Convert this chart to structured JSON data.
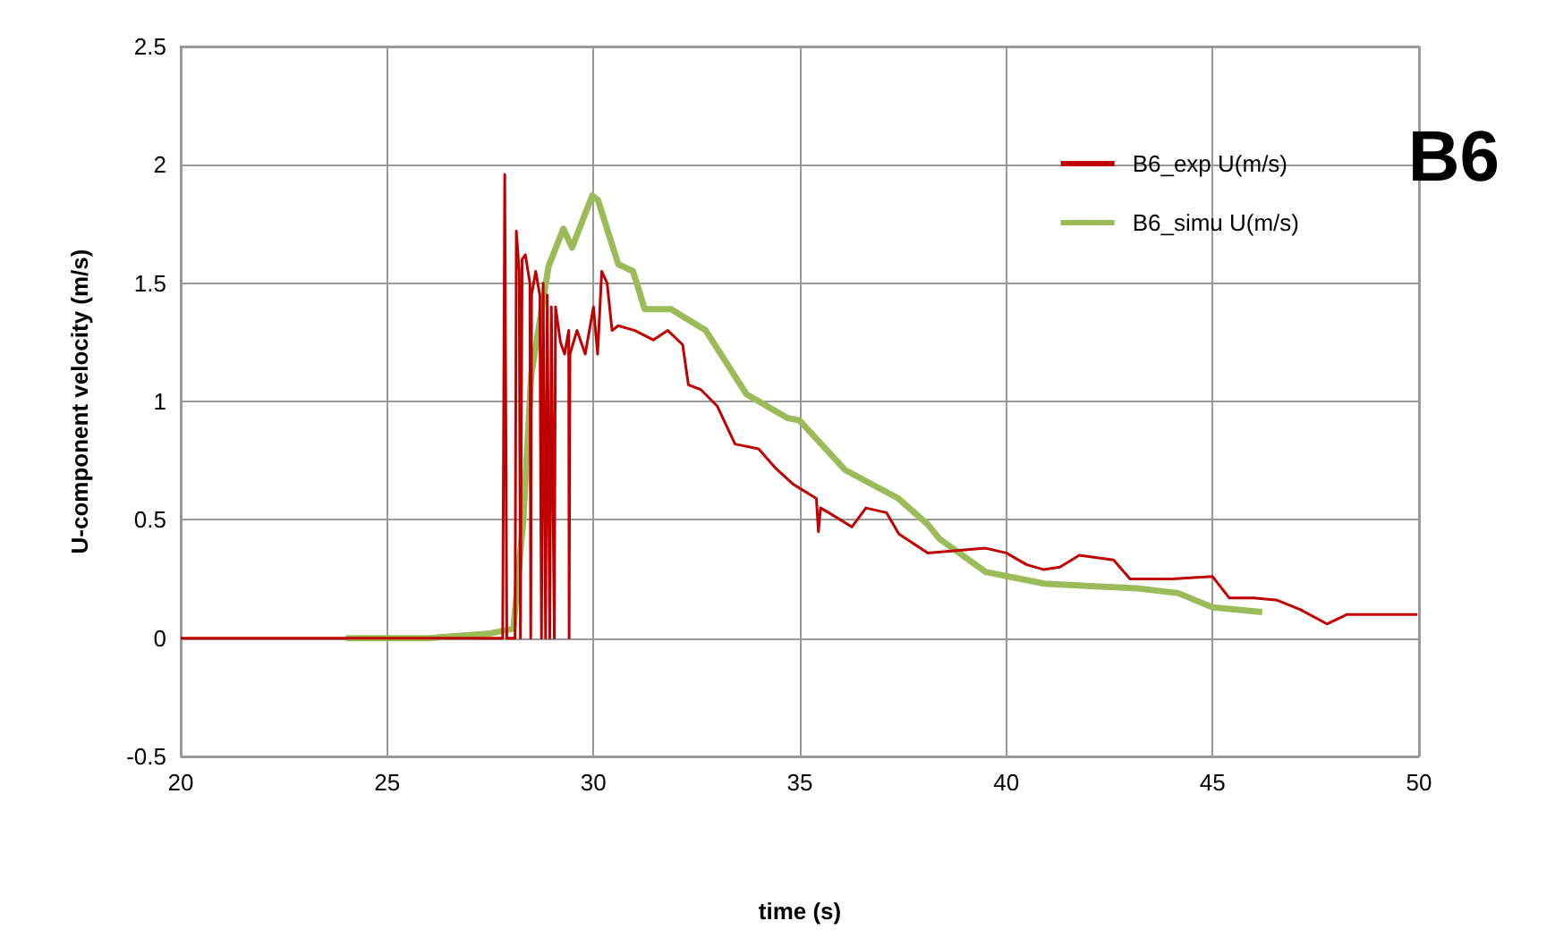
{
  "chart_data": {
    "type": "line",
    "title": "B6",
    "xlabel": "time (s)",
    "ylabel": "U-component velocity (m/s)",
    "xlim": [
      20,
      50
    ],
    "xticks": [
      20,
      25,
      30,
      35,
      40,
      45,
      50
    ],
    "ylim": [
      -0.5,
      2.5
    ],
    "yticks": [
      -0.5,
      0,
      0.5,
      1,
      1.5,
      2,
      2.5
    ],
    "grid": true,
    "legend": "top right",
    "marker": "none",
    "line_style": "solid",
    "series": [
      {
        "name": "B6_exp U(m/s)",
        "color": "#c00000",
        "x": [
          20,
          27.8,
          27.85,
          27.9,
          28.1,
          28.13,
          28.2,
          28.23,
          28.27,
          28.35,
          28.46,
          28.48,
          28.5,
          28.6,
          28.7,
          28.74,
          28.78,
          28.84,
          28.88,
          28.94,
          28.98,
          29.05,
          29.08,
          29.2,
          29.3,
          29.4,
          29.41,
          29.43,
          29.6,
          29.8,
          30.0,
          30.1,
          30.2,
          30.33,
          30.45,
          30.6,
          31.0,
          31.45,
          31.8,
          32.16,
          32.3,
          32.6,
          33.0,
          33.43,
          34.0,
          34.4,
          34.84,
          35.4,
          35.45,
          35.5,
          35.7,
          36.26,
          36.6,
          37.1,
          37.4,
          38.1,
          38.8,
          39.5,
          40.0,
          40.5,
          40.9,
          41.3,
          41.77,
          42.6,
          43.0,
          44.0,
          45.0,
          45.4,
          46.0,
          46.57,
          47.13,
          47.77,
          48.26,
          49.1,
          49.96
        ],
        "values": [
          0,
          0,
          1.96,
          0,
          0,
          1.72,
          1.55,
          0,
          1.6,
          1.62,
          1.5,
          0,
          1.45,
          1.55,
          1.45,
          0,
          1.5,
          0,
          1.45,
          0,
          1.4,
          0,
          1.4,
          1.25,
          1.2,
          1.3,
          0,
          1.2,
          1.3,
          1.2,
          1.4,
          1.2,
          1.55,
          1.5,
          1.3,
          1.32,
          1.3,
          1.26,
          1.3,
          1.24,
          1.07,
          1.05,
          0.98,
          0.82,
          0.8,
          0.72,
          0.65,
          0.59,
          0.45,
          0.55,
          0.53,
          0.47,
          0.55,
          0.53,
          0.44,
          0.36,
          0.37,
          0.38,
          0.36,
          0.31,
          0.29,
          0.3,
          0.35,
          0.33,
          0.25,
          0.25,
          0.26,
          0.17,
          0.17,
          0.16,
          0.12,
          0.06,
          0.1,
          0.1,
          0.1
        ]
      },
      {
        "name": "B6_simu U(m/s)",
        "color": "#9bbb59",
        "x": [
          24,
          26,
          27.5,
          28.06,
          28.3,
          28.49,
          28.91,
          29.27,
          29.48,
          29.97,
          30.11,
          30.6,
          30.96,
          31.24,
          31.88,
          32.72,
          33.71,
          34.7,
          34.99,
          36.1,
          37.39,
          38.1,
          38.38,
          39.5,
          40.92,
          42.05,
          43.18,
          44.17,
          45.0,
          46.2
        ],
        "values": [
          0,
          0,
          0.02,
          0.04,
          0.5,
          1.11,
          1.57,
          1.73,
          1.65,
          1.87,
          1.85,
          1.58,
          1.55,
          1.39,
          1.39,
          1.3,
          1.03,
          0.93,
          0.92,
          0.71,
          0.59,
          0.48,
          0.42,
          0.28,
          0.23,
          0.22,
          0.21,
          0.19,
          0.13,
          0.11
        ]
      }
    ]
  }
}
